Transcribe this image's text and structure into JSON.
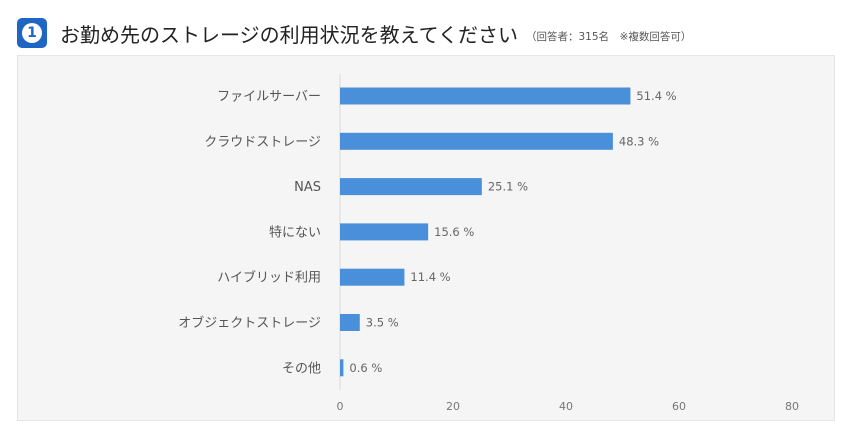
{
  "header": {
    "badge_number": "1",
    "title": "お勤め先のストレージの利用状況を教えてください",
    "note": "（回答者：315名　※複数回答可）"
  },
  "colors": {
    "badge": "#1f66c4",
    "bar": "#4a8fd9",
    "panel_background": "#f5f5f5"
  },
  "chart_data": {
    "type": "bar",
    "orientation": "horizontal",
    "categories": [
      "ファイルサーバー",
      "クラウドストレージ",
      "NAS",
      "特にない",
      "ハイブリッド利用",
      "オブジェクトストレージ",
      "その他"
    ],
    "values": [
      51.4,
      48.3,
      25.1,
      15.6,
      11.4,
      3.5,
      0.6
    ],
    "value_labels": [
      "51.4 %",
      "48.3 %",
      "25.1 %",
      "15.6 %",
      "11.4 %",
      "3.5 %",
      "0.6 %"
    ],
    "xlim": [
      0,
      80
    ],
    "xticks": [
      0,
      20,
      40,
      60,
      80
    ],
    "grid": false,
    "legend": "none"
  }
}
